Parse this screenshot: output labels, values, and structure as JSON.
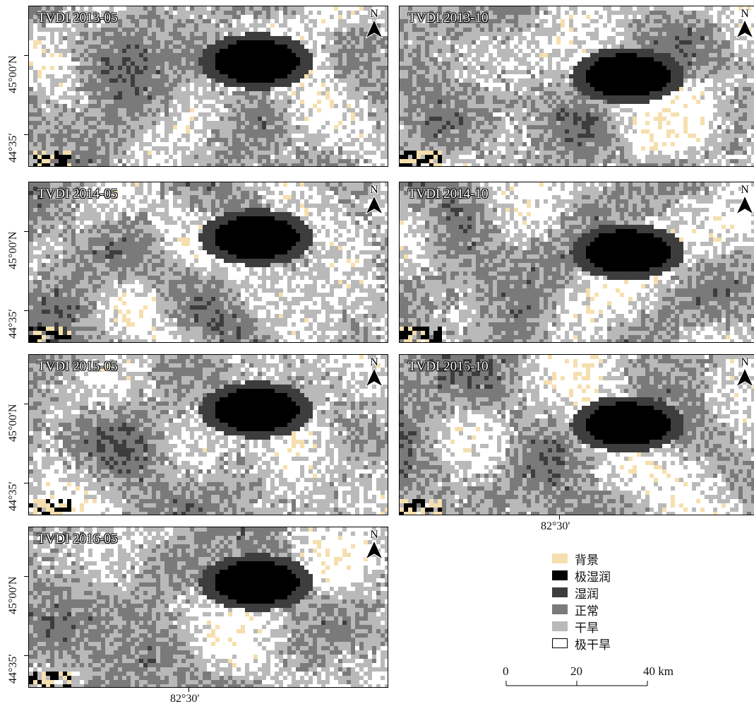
{
  "panels": [
    {
      "title": "TVDI 2013-05",
      "north": "N",
      "seed": 11
    },
    {
      "title": "TVDI 2013-10",
      "north": "N",
      "seed": 23
    },
    {
      "title": "TVDI 2014-05",
      "north": "N",
      "seed": 37
    },
    {
      "title": "TVDI 2014-10",
      "north": "N",
      "seed": 41
    },
    {
      "title": "TVDI 2015-05",
      "north": "N",
      "seed": 53
    },
    {
      "title": "TVDI 2015-10",
      "north": "N",
      "seed": 67
    },
    {
      "title": "TVDI 2016-05",
      "north": "N",
      "seed": 79
    }
  ],
  "axes": {
    "lat_north": "45°00′N",
    "lat_south": "44°35′",
    "lon": "82°30′"
  },
  "legend": {
    "items": [
      {
        "label": "背景",
        "color": "#f6dfae"
      },
      {
        "label": "极湿润",
        "color": "#000000"
      },
      {
        "label": "湿润",
        "color": "#3d3d3d"
      },
      {
        "label": "正常",
        "color": "#7a7a7a"
      },
      {
        "label": "干旱",
        "color": "#b9b9b9"
      },
      {
        "label": "极干旱",
        "color": "#ffffff"
      }
    ]
  },
  "scalebar": {
    "labels": [
      "0",
      "20",
      "40 km"
    ]
  },
  "colors": {
    "background": "#f6dfae",
    "very_wet": "#000000",
    "wet": "#3d3d3d",
    "normal": "#7a7a7a",
    "dry": "#b9b9b9",
    "very_dry": "#ffffff"
  }
}
